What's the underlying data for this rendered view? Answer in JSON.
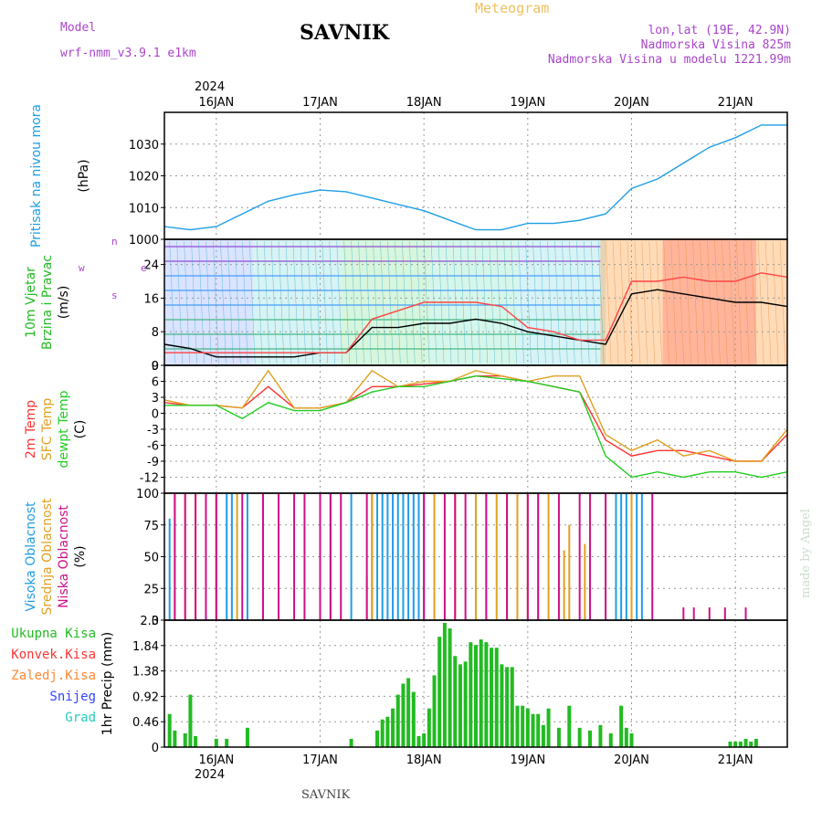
{
  "header": {
    "model_label": "Model",
    "model_value": "wrf-nmm_v3.9.1 e1km",
    "station": "SAVNIK",
    "product": "Meteogram",
    "coords": "lon,lat (19E, 42.9N)",
    "elevation": "Nadmorska Visina 825m",
    "model_elevation": "Nadmorska Visina u modelu 1221.99m",
    "year_top": "2024",
    "year_bottom": "2024",
    "footer_station": "SAVNIK",
    "watermark": "made by Angel"
  },
  "colors": {
    "pressure": "#1e9ee6",
    "temp2m": "#ff3333",
    "sfc": "#e0a020",
    "dew": "#22cc22",
    "high_cloud": "#1e9ee6",
    "mid_cloud": "#e0a020",
    "low_cloud": "#cc1188",
    "header_purple": "#aa44cc",
    "header_orange": "#f0c060"
  },
  "chart_data": [
    {
      "type": "line",
      "panel": "pressure",
      "ylabel": [
        "Pritisak na nivou mora",
        "(hPa)"
      ],
      "yticks": [
        1000,
        1010,
        1020,
        1030
      ],
      "ylim": [
        1000,
        1040
      ],
      "x_ticks": [
        "16JAN",
        "17JAN",
        "18JAN",
        "19JAN",
        "20JAN",
        "21JAN"
      ],
      "grid": true,
      "series": [
        {
          "name": "Pritisak na nivou mora",
          "x": [
            15.5,
            15.75,
            16.0,
            16.25,
            16.5,
            16.75,
            17.0,
            17.25,
            17.5,
            17.75,
            18.0,
            18.25,
            18.5,
            18.75,
            19.0,
            19.25,
            19.5,
            19.75,
            20.0,
            20.25,
            20.5,
            20.75,
            21.0,
            21.25,
            21.5
          ],
          "values": [
            1004,
            1003,
            1004,
            1008,
            1012,
            1014,
            1015.5,
            1015,
            1013,
            1011,
            1009,
            1006,
            1003,
            1003,
            1005,
            1005,
            1006,
            1008,
            1016,
            1019,
            1024,
            1029,
            1032,
            1036,
            1036
          ]
        }
      ]
    },
    {
      "type": "line",
      "panel": "wind",
      "ylabel": [
        "10m Vjetar",
        "Brzina i Pravac",
        "(m/s)"
      ],
      "compass": [
        "w",
        "e",
        "s",
        "n"
      ],
      "yticks": [
        0,
        8,
        16,
        24
      ],
      "ylim": [
        0,
        30
      ],
      "grid": true,
      "series": [
        {
          "name": "wind speed",
          "x": [
            15.5,
            15.75,
            16.0,
            16.25,
            16.5,
            16.75,
            17.0,
            17.25,
            17.5,
            17.75,
            18.0,
            18.25,
            18.5,
            18.75,
            19.0,
            19.25,
            19.5,
            19.75,
            20.0,
            20.25,
            20.5,
            20.75,
            21.0,
            21.25,
            21.5
          ],
          "values": [
            5,
            4,
            2,
            2,
            2,
            2,
            3,
            3,
            9,
            9,
            10,
            10,
            11,
            10,
            8,
            7,
            6,
            5,
            17,
            18,
            17,
            16,
            15,
            15,
            14
          ]
        },
        {
          "name": "wind gust",
          "x": [
            15.5,
            15.75,
            16.0,
            16.25,
            16.5,
            16.75,
            17.0,
            17.25,
            17.5,
            17.75,
            18.0,
            18.25,
            18.5,
            18.75,
            19.0,
            19.25,
            19.5,
            19.75,
            20.0,
            20.25,
            20.5,
            20.75,
            21.0,
            21.25,
            21.5
          ],
          "values": [
            3,
            3,
            3,
            3,
            3,
            3,
            3,
            3,
            11,
            13,
            15,
            15,
            15,
            14,
            9,
            8,
            6,
            6,
            20,
            20,
            21,
            20,
            20,
            22,
            21
          ]
        }
      ]
    },
    {
      "type": "line",
      "panel": "temperature",
      "ylabel": [
        "2m Temp",
        "SFC Temp",
        "dewpt Temp",
        "(C)"
      ],
      "yticks": [
        9,
        6,
        3,
        0,
        -3,
        -6,
        -9,
        -12
      ],
      "ylim": [
        -15,
        9
      ],
      "grid": true,
      "series": [
        {
          "name": "2m Temp",
          "x": [
            15.5,
            15.75,
            16.0,
            16.25,
            16.5,
            16.75,
            17.0,
            17.25,
            17.5,
            17.75,
            18.0,
            18.25,
            18.5,
            18.75,
            19.0,
            19.25,
            19.5,
            19.75,
            20.0,
            20.25,
            20.5,
            20.75,
            21.0,
            21.25,
            21.5
          ],
          "values": [
            2,
            1.5,
            1.5,
            1,
            5,
            1,
            1,
            2,
            5,
            5,
            5.5,
            6,
            7,
            7,
            6,
            5,
            4,
            -5,
            -8,
            -7,
            -7,
            -8,
            -9,
            -9,
            -4
          ]
        },
        {
          "name": "SFC Temp",
          "x": [
            15.5,
            15.75,
            16.0,
            16.25,
            16.5,
            16.75,
            17.0,
            17.25,
            17.5,
            17.75,
            18.0,
            18.25,
            18.5,
            18.75,
            19.0,
            19.25,
            19.5,
            19.75,
            20.0,
            20.25,
            20.5,
            20.75,
            21.0,
            21.25,
            21.5
          ],
          "values": [
            2.5,
            1.5,
            1.5,
            1,
            8,
            1,
            1,
            2,
            8,
            5,
            6,
            6,
            8,
            7,
            6,
            7,
            7,
            -4,
            -7,
            -5,
            -8,
            -7,
            -9,
            -9,
            -3
          ]
        },
        {
          "name": "dewpt Temp",
          "x": [
            15.5,
            15.75,
            16.0,
            16.25,
            16.5,
            16.75,
            17.0,
            17.25,
            17.5,
            17.75,
            18.0,
            18.25,
            18.5,
            18.75,
            19.0,
            19.25,
            19.5,
            19.75,
            20.0,
            20.25,
            20.5,
            20.75,
            21.0,
            21.25,
            21.5
          ],
          "values": [
            1.5,
            1.5,
            1.5,
            -1,
            2,
            0.5,
            0.5,
            2,
            4,
            5,
            5,
            6,
            7,
            6.5,
            6,
            5,
            4,
            -8,
            -12,
            -11,
            -12,
            -11,
            -11,
            -12,
            -11
          ]
        }
      ]
    },
    {
      "type": "bar",
      "panel": "cloud",
      "ylabel": [
        "Visoka Oblacnost",
        "Srednja Oblacnost",
        "Niska Oblacnost",
        "(%)"
      ],
      "yticks": [
        0,
        25,
        50,
        75,
        100
      ],
      "ylim": [
        0,
        100
      ],
      "grid": true,
      "series": [
        {
          "name": "Visoka Oblacnost",
          "x": [
            15.55,
            16.0,
            16.1,
            16.15,
            16.3,
            17.0,
            17.1,
            17.3,
            17.5,
            17.55,
            17.6,
            17.65,
            17.7,
            17.75,
            17.8,
            17.85,
            17.9,
            17.95,
            18.0,
            19.85,
            19.9,
            19.95,
            20.0,
            20.05,
            20.1
          ],
          "values": [
            80,
            100,
            100,
            100,
            100,
            100,
            100,
            100,
            100,
            100,
            100,
            100,
            100,
            100,
            100,
            100,
            100,
            100,
            100,
            100,
            100,
            100,
            100,
            100,
            100
          ]
        },
        {
          "name": "Srednja Oblacnost",
          "x": [
            15.6,
            15.7,
            15.8,
            15.9,
            16.0,
            16.2,
            17.45,
            17.5,
            18.0,
            18.1,
            18.3,
            18.5,
            18.6,
            18.7,
            18.8,
            18.9,
            19.0,
            19.1,
            19.2,
            19.35,
            19.4,
            19.55,
            20.0
          ],
          "values": [
            100,
            100,
            100,
            100,
            100,
            100,
            35,
            100,
            100,
            100,
            100,
            100,
            100,
            100,
            100,
            100,
            100,
            100,
            100,
            55,
            75,
            60,
            100
          ]
        },
        {
          "name": "Niska Oblacnost",
          "x": [
            15.6,
            15.7,
            15.8,
            15.9,
            16.0,
            16.25,
            16.45,
            16.6,
            16.75,
            16.85,
            17.0,
            17.1,
            17.2,
            17.45,
            18.0,
            18.2,
            18.3,
            18.4,
            18.6,
            18.8,
            19.0,
            19.1,
            19.3,
            19.5,
            19.6,
            19.75,
            20.2,
            20.5,
            20.6,
            20.75,
            20.9,
            21.1
          ],
          "values": [
            100,
            100,
            100,
            100,
            100,
            100,
            100,
            100,
            100,
            100,
            100,
            100,
            100,
            100,
            100,
            100,
            100,
            100,
            100,
            100,
            100,
            100,
            100,
            100,
            100,
            100,
            100,
            10,
            10,
            10,
            10,
            10
          ]
        }
      ]
    },
    {
      "type": "bar",
      "panel": "precip",
      "ylabel": [
        "1hr Precip (mm)"
      ],
      "legend": [
        "Ukupna Kisa",
        "Konvek.Kisa",
        "Zaledj.Kisa",
        "Snijeg",
        "Grad"
      ],
      "legend_colors": [
        "#22bb22",
        "#ff3333",
        "#ff8833",
        "#3344ff",
        "#22ccbb"
      ],
      "yticks": [
        0,
        0.46,
        0.92,
        1.38,
        1.84,
        2.3
      ],
      "ylim": [
        0,
        2.3
      ],
      "grid": true,
      "series": [
        {
          "name": "Ukupna Kisa",
          "x": [
            15.55,
            15.6,
            15.7,
            15.75,
            15.8,
            16.0,
            16.1,
            16.3,
            17.3,
            17.55,
            17.6,
            17.65,
            17.7,
            17.75,
            17.8,
            17.85,
            17.9,
            17.95,
            18.0,
            18.05,
            18.1,
            18.15,
            18.2,
            18.25,
            18.3,
            18.35,
            18.4,
            18.45,
            18.5,
            18.55,
            18.6,
            18.65,
            18.7,
            18.75,
            18.8,
            18.85,
            18.9,
            18.95,
            19.0,
            19.05,
            19.1,
            19.15,
            19.2,
            19.3,
            19.4,
            19.5,
            19.6,
            19.7,
            19.8,
            19.9,
            19.95,
            20.0,
            20.95,
            21.0,
            21.05,
            21.1,
            21.15,
            21.2
          ],
          "values": [
            0.6,
            0.3,
            0.25,
            0.95,
            0.2,
            0.15,
            0.15,
            0.35,
            0.15,
            0.3,
            0.5,
            0.55,
            0.7,
            0.95,
            1.15,
            1.25,
            1.0,
            0.2,
            0.25,
            0.7,
            1.3,
            2.0,
            2.25,
            2.15,
            1.65,
            1.5,
            1.55,
            1.9,
            1.85,
            1.95,
            1.9,
            1.8,
            1.8,
            1.5,
            1.45,
            1.45,
            0.75,
            0.75,
            0.7,
            0.6,
            0.6,
            0.4,
            0.7,
            0.35,
            0.75,
            0.35,
            0.3,
            0.4,
            0.25,
            0.75,
            0.35,
            0.25,
            0.1,
            0.1,
            0.1,
            0.15,
            0.1,
            0.15
          ]
        }
      ]
    }
  ]
}
